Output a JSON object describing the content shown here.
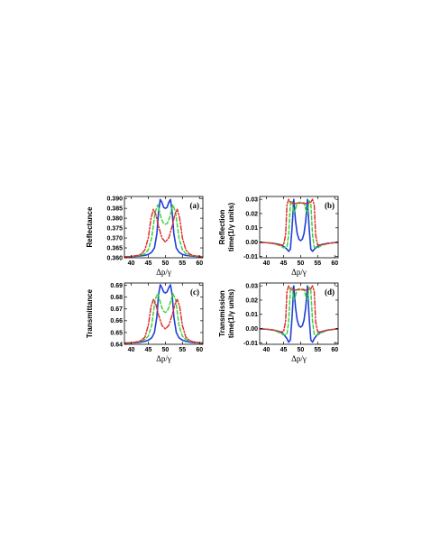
{
  "chart_data": [
    {
      "type": "line",
      "panel_label": "(a)",
      "ylabel": "Reflectance",
      "xlabel": "Δp/γ",
      "xlim": [
        38,
        61
      ],
      "ylim": [
        0.36,
        0.391
      ],
      "xticks": [
        40,
        45,
        50,
        55,
        60
      ],
      "yticks": [
        "0.360",
        "0.365",
        "0.370",
        "0.375",
        "0.380",
        "0.385",
        "0.390"
      ],
      "series": [
        {
          "color": "#1f3fd9",
          "style": "solid",
          "x": [
            38,
            40,
            42,
            44,
            45,
            46,
            46.8,
            47.5,
            48,
            48.5,
            49,
            49.5,
            50,
            50.5,
            51,
            51.5,
            52,
            52.5,
            53.2,
            54,
            55,
            56,
            58,
            60,
            61
          ],
          "y": [
            0.3605,
            0.3606,
            0.3608,
            0.3612,
            0.3617,
            0.3628,
            0.365,
            0.372,
            0.383,
            0.3895,
            0.388,
            0.3855,
            0.385,
            0.3855,
            0.388,
            0.3895,
            0.383,
            0.372,
            0.365,
            0.3628,
            0.3617,
            0.3612,
            0.3608,
            0.3606,
            0.3605
          ]
        },
        {
          "color": "#3fd23f",
          "style": "dashed",
          "x": [
            38,
            40,
            42,
            44,
            45,
            46,
            47,
            47.8,
            48.5,
            49,
            49.5,
            50,
            50.5,
            51,
            51.5,
            52.2,
            53,
            54,
            55,
            56,
            58,
            60,
            61
          ],
          "y": [
            0.3605,
            0.3607,
            0.361,
            0.362,
            0.364,
            0.37,
            0.383,
            0.3868,
            0.382,
            0.379,
            0.3773,
            0.377,
            0.3773,
            0.379,
            0.382,
            0.3868,
            0.383,
            0.37,
            0.364,
            0.362,
            0.361,
            0.3607,
            0.3605
          ]
        },
        {
          "color": "#e03030",
          "style": "dashdot",
          "x": [
            38,
            40,
            42,
            43,
            44,
            45,
            45.8,
            46.5,
            47.2,
            48,
            49,
            50,
            51,
            52,
            52.8,
            53.5,
            54.2,
            55,
            56,
            57,
            58,
            60,
            61
          ],
          "y": [
            0.3605,
            0.3607,
            0.3612,
            0.362,
            0.364,
            0.37,
            0.38,
            0.3845,
            0.382,
            0.376,
            0.37,
            0.368,
            0.37,
            0.376,
            0.382,
            0.3845,
            0.38,
            0.37,
            0.364,
            0.362,
            0.3612,
            0.3607,
            0.3605
          ]
        }
      ]
    },
    {
      "type": "line",
      "panel_label": "(b)",
      "ylabel": "Reflection time(1/γ units)",
      "ylabel_lines": [
        "Reflection",
        "time(1/γ units)"
      ],
      "xlabel": "Δp/γ",
      "xlim": [
        38,
        61
      ],
      "ylim": [
        -0.011,
        0.032
      ],
      "xticks": [
        40,
        45,
        50,
        55,
        60
      ],
      "yticks": [
        "-0.01",
        "0.00",
        "0.01",
        "0.02",
        "0.03"
      ],
      "series": [
        {
          "color": "#1f3fd9",
          "style": "solid",
          "x": [
            38,
            40,
            42,
            44,
            45,
            46,
            46.5,
            47,
            47.5,
            48,
            48.5,
            49,
            49.5,
            50,
            50.5,
            51,
            51.5,
            52,
            52.5,
            53,
            53.5,
            54,
            55,
            56,
            58,
            60,
            61
          ],
          "y": [
            -0.0002,
            -0.0004,
            -0.0008,
            -0.0018,
            -0.003,
            -0.005,
            -0.0065,
            -0.005,
            0.01,
            0.03,
            0.015,
            0.006,
            0.002,
            0.001,
            0.002,
            0.006,
            0.015,
            0.03,
            0.01,
            -0.005,
            -0.0065,
            -0.005,
            -0.003,
            -0.0018,
            -0.0008,
            -0.0004,
            -0.0002
          ]
        },
        {
          "color": "#3fd23f",
          "style": "dashed",
          "x": [
            38,
            40,
            42,
            44,
            45,
            46,
            46.5,
            47,
            47.5,
            48,
            48.5,
            49,
            50,
            51,
            51.5,
            52,
            52.5,
            53,
            53.5,
            54,
            55,
            56,
            58,
            60,
            61
          ],
          "y": [
            -0.0002,
            -0.0004,
            -0.001,
            -0.0025,
            -0.004,
            -0.0035,
            0.005,
            0.027,
            0.029,
            0.02,
            0.023,
            0.0275,
            0.028,
            0.0275,
            0.023,
            0.02,
            0.029,
            0.027,
            0.005,
            -0.0035,
            -0.004,
            -0.0025,
            -0.001,
            -0.0004,
            -0.0002
          ]
        },
        {
          "color": "#e03030",
          "style": "dashdot",
          "x": [
            38,
            40,
            42,
            44,
            45,
            45.6,
            46,
            46.5,
            47,
            48,
            49,
            50,
            51,
            52,
            53,
            53.5,
            54,
            54.4,
            55,
            56,
            58,
            60,
            61
          ],
          "y": [
            -0.0002,
            -0.0004,
            -0.001,
            -0.002,
            -0.002,
            0.005,
            0.026,
            0.03,
            0.028,
            0.027,
            0.0272,
            0.0273,
            0.0272,
            0.027,
            0.028,
            0.03,
            0.026,
            0.005,
            -0.002,
            -0.002,
            -0.001,
            -0.0004,
            -0.0002
          ]
        }
      ]
    },
    {
      "type": "line",
      "panel_label": "(c)",
      "ylabel": "Transmittance",
      "xlabel": "Δp/γ",
      "xlim": [
        38,
        61
      ],
      "ylim": [
        0.64,
        0.692
      ],
      "xticks": [
        40,
        45,
        50,
        55,
        60
      ],
      "yticks": [
        "0.64",
        "0.65",
        "0.66",
        "0.67",
        "0.68",
        "0.69"
      ],
      "series": [
        {
          "color": "#1f3fd9",
          "style": "solid",
          "x": [
            38,
            40,
            42,
            44,
            45,
            46,
            46.8,
            47.5,
            48,
            48.5,
            49,
            49.5,
            50,
            50.5,
            51,
            51.5,
            52,
            52.5,
            53.2,
            54,
            55,
            56,
            58,
            60,
            61
          ],
          "y": [
            0.641,
            0.6412,
            0.6415,
            0.6425,
            0.6435,
            0.6455,
            0.65,
            0.663,
            0.682,
            0.6905,
            0.688,
            0.6845,
            0.6835,
            0.6845,
            0.688,
            0.6905,
            0.682,
            0.663,
            0.65,
            0.6455,
            0.6435,
            0.6425,
            0.6415,
            0.6412,
            0.641
          ]
        },
        {
          "color": "#3fd23f",
          "style": "dashed",
          "x": [
            38,
            40,
            42,
            44,
            45,
            46,
            47,
            47.8,
            48.5,
            49,
            49.5,
            50,
            50.5,
            51,
            51.5,
            52.2,
            53,
            54,
            55,
            56,
            58,
            60,
            61
          ],
          "y": [
            0.641,
            0.6413,
            0.642,
            0.644,
            0.647,
            0.656,
            0.678,
            0.683,
            0.676,
            0.671,
            0.668,
            0.667,
            0.668,
            0.671,
            0.676,
            0.683,
            0.678,
            0.656,
            0.647,
            0.644,
            0.642,
            0.6413,
            0.641
          ]
        },
        {
          "color": "#e03030",
          "style": "dashdot",
          "x": [
            38,
            40,
            42,
            43,
            44,
            45,
            45.8,
            46.5,
            47.2,
            48,
            49,
            50,
            51,
            52,
            52.8,
            53.5,
            54.2,
            55,
            56,
            57,
            58,
            60,
            61
          ],
          "y": [
            0.641,
            0.6413,
            0.6422,
            0.6435,
            0.646,
            0.656,
            0.672,
            0.678,
            0.674,
            0.665,
            0.656,
            0.653,
            0.656,
            0.665,
            0.674,
            0.678,
            0.672,
            0.656,
            0.646,
            0.6435,
            0.6422,
            0.6413,
            0.641
          ]
        }
      ]
    },
    {
      "type": "line",
      "panel_label": "(d)",
      "ylabel": "Transmission time(1/γ units)",
      "ylabel_lines": [
        "Transmission",
        "time(1/γ units)"
      ],
      "xlabel": "Δp/γ",
      "xlim": [
        38,
        61
      ],
      "ylim": [
        -0.011,
        0.032
      ],
      "xticks": [
        40,
        45,
        50,
        55,
        60
      ],
      "yticks": [
        "-0.01",
        "0.00",
        "0.01",
        "0.02",
        "0.03"
      ],
      "series": [
        {
          "color": "#1f3fd9",
          "style": "solid",
          "x": [
            38,
            40,
            42,
            44,
            45,
            46,
            46.5,
            47,
            47.5,
            48,
            48.5,
            49,
            49.5,
            50,
            50.5,
            51,
            51.5,
            52,
            52.5,
            53,
            53.5,
            54,
            55,
            56,
            58,
            60,
            61
          ],
          "y": [
            -0.0002,
            -0.0004,
            -0.001,
            -0.0022,
            -0.004,
            -0.007,
            -0.0095,
            -0.008,
            0.008,
            0.03,
            0.015,
            0.006,
            0.002,
            0.001,
            0.002,
            0.006,
            0.015,
            0.03,
            0.008,
            -0.008,
            -0.0095,
            -0.007,
            -0.004,
            -0.0022,
            -0.001,
            -0.0004,
            -0.0002
          ]
        },
        {
          "color": "#3fd23f",
          "style": "dashed",
          "x": [
            38,
            40,
            42,
            44,
            45,
            46,
            46.5,
            47,
            47.5,
            48,
            48.5,
            49,
            50,
            51,
            51.5,
            52,
            52.5,
            53,
            53.5,
            54,
            55,
            56,
            58,
            60,
            61
          ],
          "y": [
            -0.0002,
            -0.0004,
            -0.001,
            -0.003,
            -0.0045,
            -0.004,
            0.005,
            0.027,
            0.029,
            0.02,
            0.023,
            0.0275,
            0.028,
            0.0275,
            0.023,
            0.02,
            0.029,
            0.027,
            0.005,
            -0.004,
            -0.0045,
            -0.003,
            -0.001,
            -0.0004,
            -0.0002
          ]
        },
        {
          "color": "#e03030",
          "style": "dashdot",
          "x": [
            38,
            40,
            42,
            44,
            45,
            45.6,
            46,
            46.5,
            47,
            48,
            49,
            50,
            51,
            52,
            53,
            53.5,
            54,
            54.4,
            55,
            56,
            58,
            60,
            61
          ],
          "y": [
            -0.0002,
            -0.0004,
            -0.001,
            -0.0022,
            -0.0022,
            0.005,
            0.026,
            0.03,
            0.028,
            0.027,
            0.0272,
            0.0273,
            0.0272,
            0.027,
            0.028,
            0.03,
            0.026,
            0.005,
            -0.0022,
            -0.0022,
            -0.001,
            -0.0004,
            -0.0002
          ]
        }
      ]
    }
  ]
}
